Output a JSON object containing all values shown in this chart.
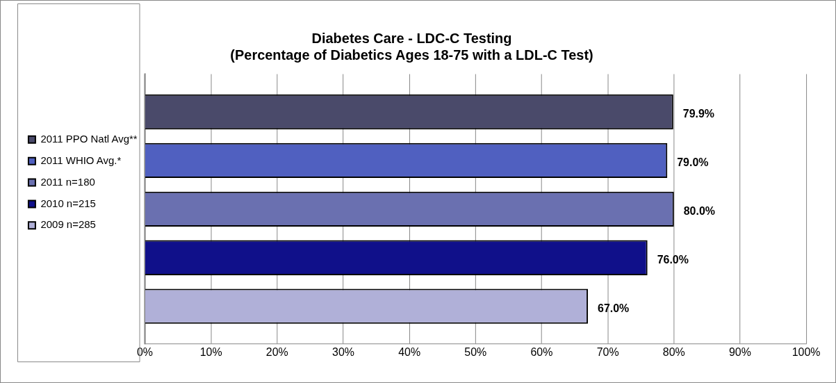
{
  "chart_data": {
    "type": "bar",
    "orientation": "horizontal",
    "title": "Diabetes Care - LDC-C Testing",
    "subtitle": "(Percentage of Diabetics Ages 18-75 with a LDL-C Test)",
    "categories": [
      null
    ],
    "series": [
      {
        "name": "2011 PPO Natl Avg**",
        "color": "#4a4a6a",
        "values": [
          79.9
        ],
        "value_labels": [
          "79.9%"
        ]
      },
      {
        "name": "2011 WHIO Avg.*",
        "color": "#5060c0",
        "values": [
          79.0
        ],
        "value_labels": [
          "79.0%"
        ]
      },
      {
        "name": "2011 n=180",
        "color": "#6a70b0",
        "values": [
          80.0
        ],
        "value_labels": [
          "80.0%"
        ]
      },
      {
        "name": "2010 n=215",
        "color": "#10108a",
        "values": [
          76.0
        ],
        "value_labels": [
          "76.0%"
        ]
      },
      {
        "name": "2009 n=285",
        "color": "#b0b0d8",
        "values": [
          67.0
        ],
        "value_labels": [
          "67.0%"
        ]
      }
    ],
    "xlim": [
      0,
      100
    ],
    "xticks": [
      {
        "value": 0,
        "label": "0%"
      },
      {
        "value": 10,
        "label": "10%"
      },
      {
        "value": 20,
        "label": "20%"
      },
      {
        "value": 30,
        "label": "30%"
      },
      {
        "value": 40,
        "label": "40%"
      },
      {
        "value": 50,
        "label": "50%"
      },
      {
        "value": 60,
        "label": "60%"
      },
      {
        "value": 70,
        "label": "70%"
      },
      {
        "value": 80,
        "label": "80%"
      },
      {
        "value": 90,
        "label": "90%"
      },
      {
        "value": 100,
        "label": "100%"
      }
    ],
    "grid": "x",
    "legend": "left"
  }
}
